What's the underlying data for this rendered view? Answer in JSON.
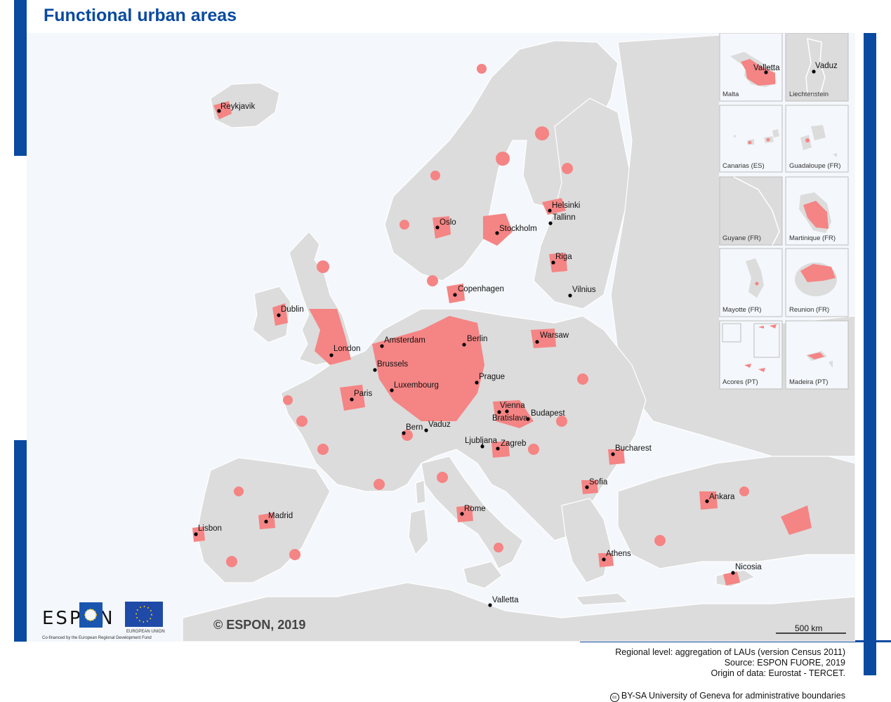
{
  "title": "Functional urban areas",
  "colors": {
    "accent": "#0a4aa0",
    "fua": "#f58484",
    "land": "#dcdcdc",
    "sea": "#f4f7fb"
  },
  "cities": [
    {
      "name": "Reykjavik"
    },
    {
      "name": "Oslo"
    },
    {
      "name": "Stockholm"
    },
    {
      "name": "Helsinki"
    },
    {
      "name": "Tallinn"
    },
    {
      "name": "Riga"
    },
    {
      "name": "Copenhagen"
    },
    {
      "name": "Vilnius"
    },
    {
      "name": "Dublin"
    },
    {
      "name": "Amsterdam"
    },
    {
      "name": "Berlin"
    },
    {
      "name": "Warsaw"
    },
    {
      "name": "London"
    },
    {
      "name": "Brussels"
    },
    {
      "name": "Prague"
    },
    {
      "name": "Luxembourg"
    },
    {
      "name": "Paris"
    },
    {
      "name": "Vienna"
    },
    {
      "name": "Bratislava"
    },
    {
      "name": "Budapest"
    },
    {
      "name": "Bern"
    },
    {
      "name": "Vaduz"
    },
    {
      "name": "Ljubljana"
    },
    {
      "name": "Zagreb"
    },
    {
      "name": "Bucharest"
    },
    {
      "name": "Sofia"
    },
    {
      "name": "Ankara"
    },
    {
      "name": "Madrid"
    },
    {
      "name": "Rome"
    },
    {
      "name": "Lisbon"
    },
    {
      "name": "Athens"
    },
    {
      "name": "Nicosia"
    },
    {
      "name": "Valletta"
    }
  ],
  "insets": [
    {
      "name": "Malta",
      "city": "Valletta"
    },
    {
      "name": "Liechtenstein",
      "city": "Vaduz"
    },
    {
      "name": "Canarias (ES)"
    },
    {
      "name": "Guadaloupe (FR)"
    },
    {
      "name": "Guyane (FR)"
    },
    {
      "name": "Martinique (FR)"
    },
    {
      "name": "Mayotte (FR)"
    },
    {
      "name": "Reunion (FR)"
    },
    {
      "name": "Acores (PT)"
    },
    {
      "name": "Madeira (PT)"
    }
  ],
  "scale_bar": "500 km",
  "copyright": "© ESPON, 2019",
  "logo": {
    "espon": "ESPON",
    "espon_tagline": "Co-financed by the European Regional Development Fund",
    "eu_label": "EUROPEAN UNION"
  },
  "source": {
    "line1": "Regional level: aggregation of LAUs (version Census 2011)",
    "line2": "Source: ESPON FUORE, 2019",
    "line3": "Origin of data: Eurostat - TERCET."
  },
  "license": {
    "icon": "cc-icon",
    "text": "BY-SA University of Geneva for administrative boundaries"
  }
}
